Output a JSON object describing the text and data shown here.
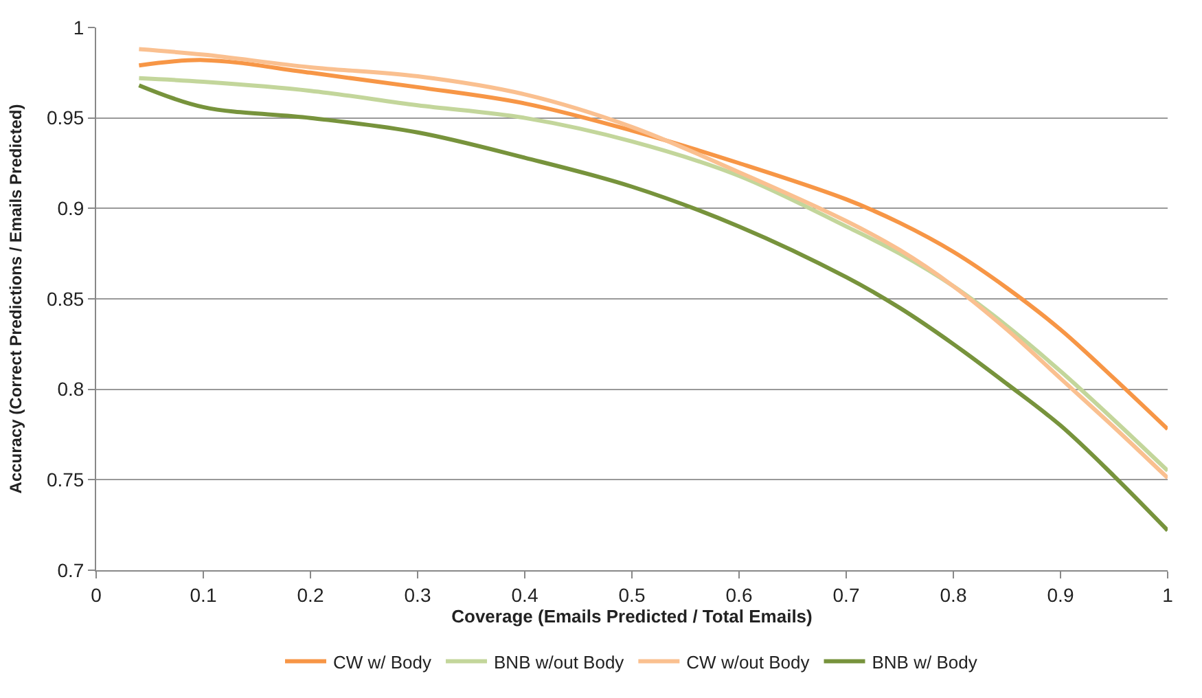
{
  "chart_data": {
    "type": "line",
    "xlabel": "Coverage (Emails Predicted / Total Emails)",
    "ylabel": "Accuracy (Correct Predictions / Emails Predicted)",
    "x": [
      0.04,
      0.1,
      0.2,
      0.3,
      0.4,
      0.5,
      0.6,
      0.7,
      0.75,
      0.8,
      0.85,
      0.9,
      0.95,
      1.0
    ],
    "series": [
      {
        "name": "CW w/ Body",
        "color": "#f79646",
        "values": [
          0.979,
          0.982,
          0.975,
          0.967,
          0.958,
          0.943,
          0.925,
          0.905,
          0.892,
          0.876,
          0.856,
          0.833,
          0.806,
          0.778
        ]
      },
      {
        "name": "BNB w/out Body",
        "color": "#c3d69b",
        "values": [
          0.972,
          0.97,
          0.965,
          0.957,
          0.95,
          0.937,
          0.918,
          0.89,
          0.875,
          0.857,
          0.835,
          0.81,
          0.783,
          0.755
        ]
      },
      {
        "name": "CW w/out Body",
        "color": "#fac090",
        "values": [
          0.988,
          0.985,
          0.978,
          0.973,
          0.963,
          0.945,
          0.92,
          0.893,
          0.877,
          0.857,
          0.833,
          0.806,
          0.779,
          0.751
        ]
      },
      {
        "name": "BNB w/ Body",
        "color": "#77933c",
        "values": [
          0.968,
          0.956,
          0.95,
          0.942,
          0.928,
          0.912,
          0.89,
          0.862,
          0.845,
          0.825,
          0.803,
          0.78,
          0.752,
          0.722
        ]
      }
    ],
    "xlim": [
      0,
      1
    ],
    "xticks": [
      0,
      0.1,
      0.2,
      0.3,
      0.4,
      0.5,
      0.6,
      0.7,
      0.8,
      0.9,
      1
    ],
    "ylim": [
      0.7,
      1
    ],
    "yticks": [
      0.7,
      0.75,
      0.8,
      0.85,
      0.9,
      0.95,
      1
    ],
    "grid": "y",
    "legend": "bottom",
    "marker": "none",
    "line_style": "solid"
  }
}
